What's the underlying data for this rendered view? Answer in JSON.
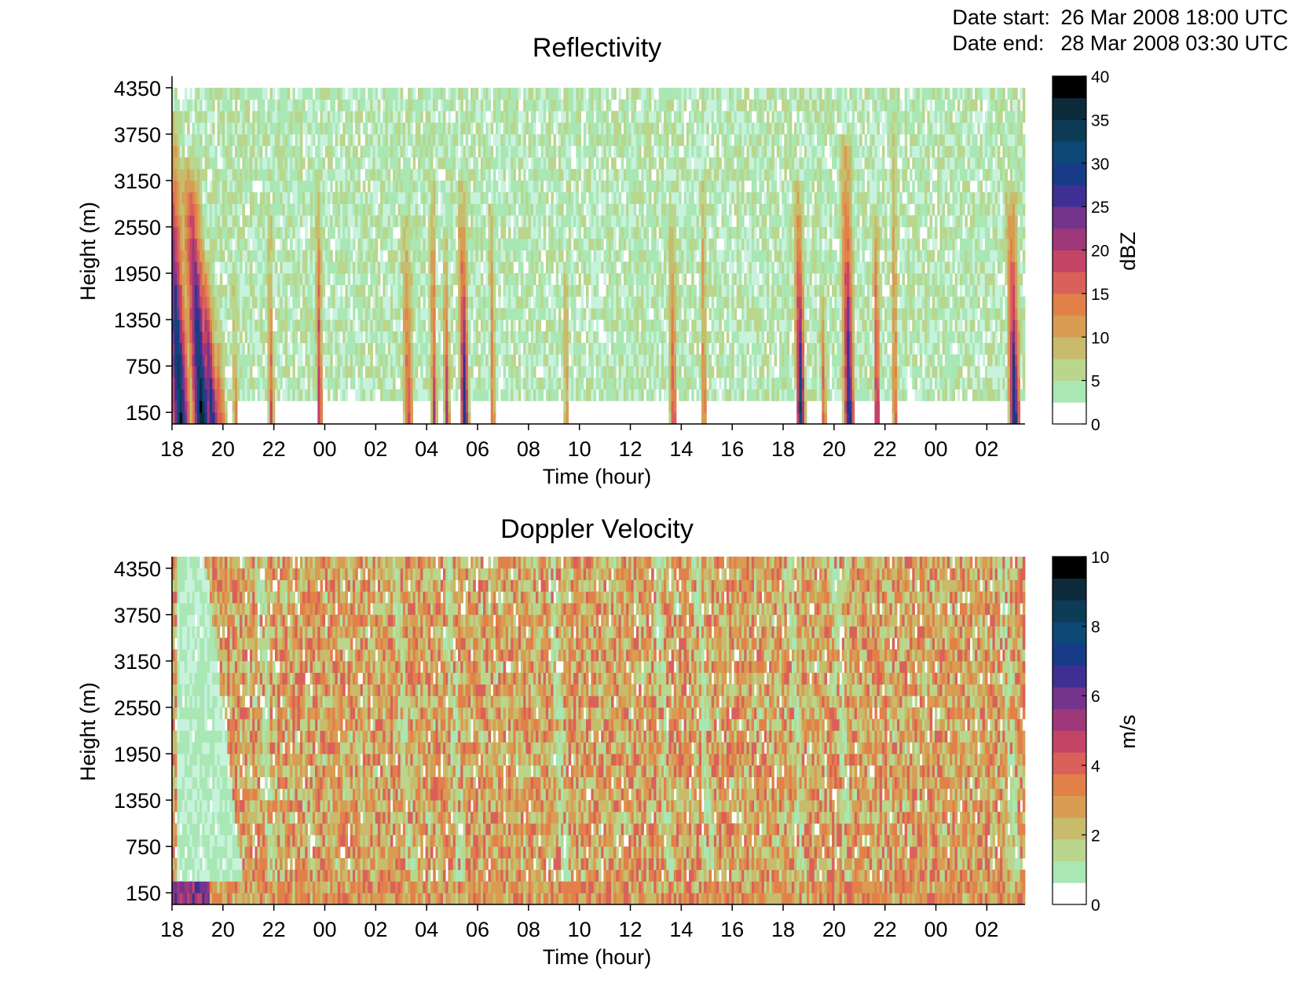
{
  "header": {
    "date_start_label": "Date start:",
    "date_start_value": "26 Mar 2008 18:00 UTC",
    "date_end_label": "Date end:",
    "date_end_value": "28 Mar 2008 03:30 UTC"
  },
  "chart_data": [
    {
      "type": "heatmap",
      "title": "Reflectivity",
      "xlabel": "Time (hour)",
      "ylabel": "Height (m)",
      "colorbar_label": "dBZ",
      "x_ticks": [
        "18",
        "20",
        "22",
        "00",
        "02",
        "04",
        "06",
        "08",
        "10",
        "12",
        "14",
        "16",
        "18",
        "20",
        "22",
        "00",
        "02"
      ],
      "y_ticks": [
        150,
        750,
        1350,
        1950,
        2550,
        3150,
        3750,
        4350
      ],
      "xlim_hours": [
        18,
        51.5
      ],
      "ylim": [
        0,
        4500
      ],
      "clim": [
        0,
        40
      ],
      "colorbar_ticks": [
        0,
        5,
        10,
        15,
        20,
        25,
        30,
        35,
        40
      ],
      "background_range": [
        2,
        8
      ],
      "background_top_m": 4350,
      "background_bottom_m": 250,
      "events": [
        {
          "t": 18.35,
          "w": 0.45,
          "top": 4000,
          "max": 38,
          "wide": true
        },
        {
          "t": 19.2,
          "w": 0.45,
          "top": 3400,
          "max": 40,
          "wide": true
        },
        {
          "t": 19.6,
          "w": 0.35,
          "top": 2200,
          "max": 32,
          "wide": true
        },
        {
          "t": 19.9,
          "w": 0.25,
          "top": 1300,
          "max": 20
        },
        {
          "t": 20.5,
          "w": 0.1,
          "top": 1900,
          "max": 14
        },
        {
          "t": 21.9,
          "w": 0.12,
          "top": 2700,
          "max": 18
        },
        {
          "t": 23.8,
          "w": 0.12,
          "top": 3100,
          "max": 24
        },
        {
          "t": 27.3,
          "w": 0.2,
          "top": 2700,
          "max": 20
        },
        {
          "t": 28.3,
          "w": 0.12,
          "top": 3100,
          "max": 22
        },
        {
          "t": 28.8,
          "w": 0.12,
          "top": 2500,
          "max": 22
        },
        {
          "t": 29.5,
          "w": 0.2,
          "top": 3100,
          "max": 32
        },
        {
          "t": 30.6,
          "w": 0.1,
          "top": 2900,
          "max": 18
        },
        {
          "t": 33.5,
          "w": 0.1,
          "top": 2000,
          "max": 14
        },
        {
          "t": 37.7,
          "w": 0.15,
          "top": 2800,
          "max": 20
        },
        {
          "t": 38.9,
          "w": 0.1,
          "top": 3100,
          "max": 18
        },
        {
          "t": 42.7,
          "w": 0.2,
          "top": 3200,
          "max": 35
        },
        {
          "t": 43.6,
          "w": 0.1,
          "top": 1800,
          "max": 20
        },
        {
          "t": 44.6,
          "w": 0.25,
          "top": 3800,
          "max": 32
        },
        {
          "t": 45.7,
          "w": 0.12,
          "top": 2800,
          "max": 28
        },
        {
          "t": 46.4,
          "w": 0.1,
          "top": 3800,
          "max": 18
        },
        {
          "t": 51.1,
          "w": 0.25,
          "top": 3100,
          "max": 34
        }
      ]
    },
    {
      "type": "heatmap",
      "title": "Doppler Velocity",
      "xlabel": "Time (hour)",
      "ylabel": "Height (m)",
      "colorbar_label": "m/s",
      "x_ticks": [
        "18",
        "20",
        "22",
        "00",
        "02",
        "04",
        "06",
        "08",
        "10",
        "12",
        "14",
        "16",
        "18",
        "20",
        "22",
        "00",
        "02"
      ],
      "y_ticks": [
        150,
        750,
        1350,
        1950,
        2550,
        3150,
        3750,
        4350
      ],
      "xlim_hours": [
        18,
        51.5
      ],
      "ylim": [
        0,
        4500
      ],
      "clim": [
        0,
        10
      ],
      "colorbar_ticks": [
        0,
        2,
        4,
        6,
        8,
        10
      ],
      "background_range": [
        1.5,
        4.5
      ],
      "low_band_range": [
        0.5,
        1.5
      ],
      "low_band_hours": [
        18.2,
        20.3
      ],
      "low_band_top_m": 4500,
      "green_streak_hours": [
        22,
        27.4,
        29.4,
        33.5,
        37.6,
        39.2,
        42.8,
        44.6,
        51.2
      ]
    }
  ]
}
